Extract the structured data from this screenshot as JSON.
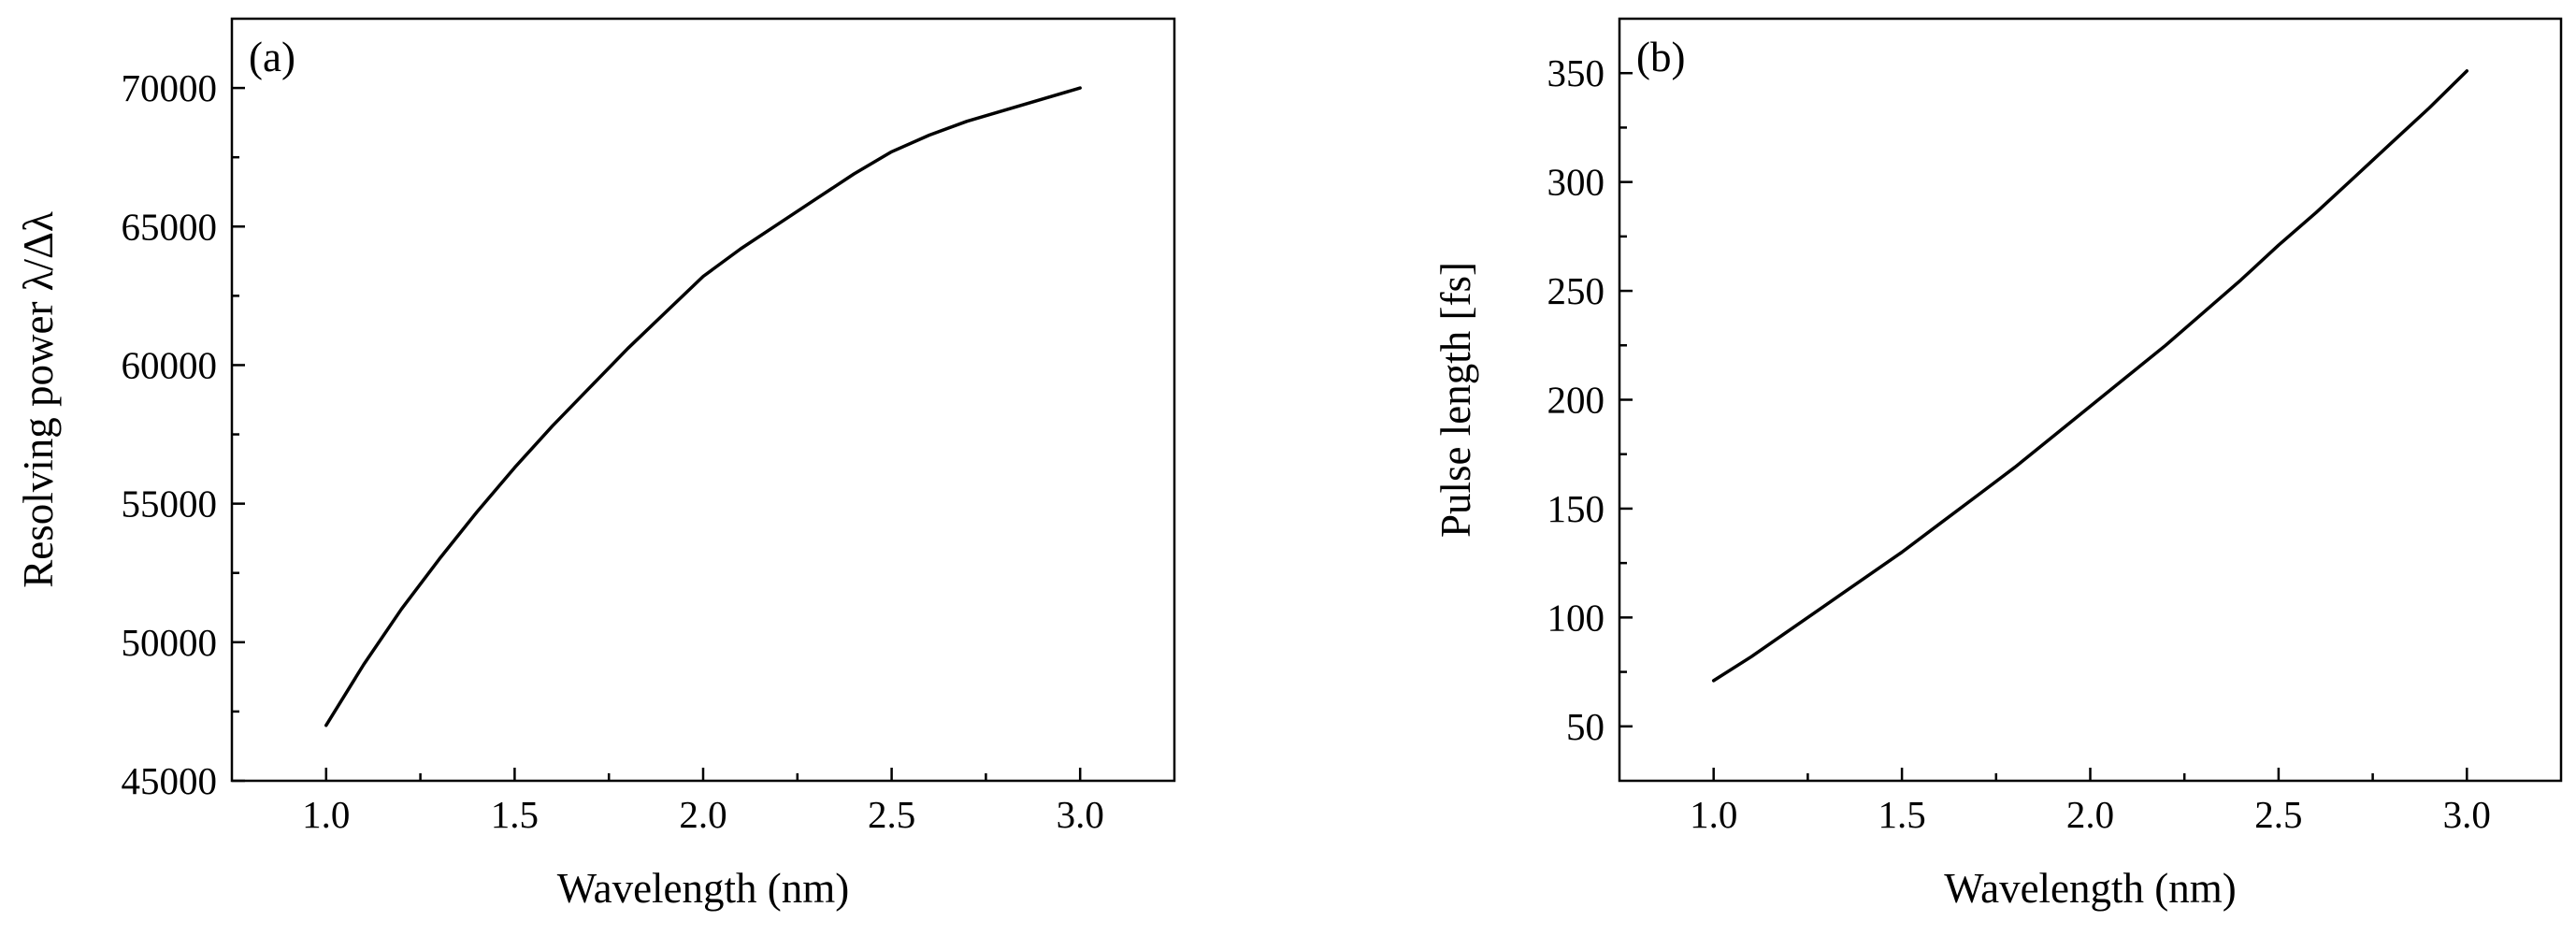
{
  "chart_data": [
    {
      "type": "line",
      "panel_label": "(a)",
      "title": "",
      "xlabel": "Wavelength (nm)",
      "ylabel": "Resolving power λ/Δλ",
      "xlim": [
        0.75,
        3.25
      ],
      "ylim": [
        45000,
        72500
      ],
      "xticks": [
        1.0,
        1.5,
        2.0,
        2.5,
        3.0
      ],
      "xtick_labels": [
        "1.0",
        "1.5",
        "2.0",
        "2.5",
        "3.0"
      ],
      "yticks": [
        45000,
        50000,
        55000,
        60000,
        65000,
        70000
      ],
      "ytick_labels": [
        "45000",
        "50000",
        "55000",
        "60000",
        "65000",
        "70000"
      ],
      "grid": false,
      "series": [
        {
          "color": "#000000",
          "x": [
            1.0,
            1.1,
            1.2,
            1.3,
            1.4,
            1.5,
            1.6,
            1.7,
            1.8,
            1.9,
            2.0,
            2.1,
            2.2,
            2.3,
            2.4,
            2.5,
            2.6,
            2.7,
            2.8,
            2.9,
            3.0
          ],
          "y": [
            47000,
            49200,
            51200,
            53000,
            54700,
            56300,
            57800,
            59200,
            60600,
            61900,
            63200,
            64200,
            65100,
            66000,
            66900,
            67700,
            68300,
            68800,
            69200,
            69600,
            70000
          ]
        }
      ]
    },
    {
      "type": "line",
      "panel_label": "(b)",
      "title": "",
      "xlabel": "Wavelength (nm)",
      "ylabel": "Pulse length [fs]",
      "xlim": [
        0.75,
        3.25
      ],
      "ylim": [
        25,
        375
      ],
      "xticks": [
        1.0,
        1.5,
        2.0,
        2.5,
        3.0
      ],
      "xtick_labels": [
        "1.0",
        "1.5",
        "2.0",
        "2.5",
        "3.0"
      ],
      "yticks": [
        50,
        100,
        150,
        200,
        250,
        300,
        350
      ],
      "ytick_labels": [
        "50",
        "100",
        "150",
        "200",
        "250",
        "300",
        "350"
      ],
      "grid": false,
      "series": [
        {
          "color": "#000000",
          "x": [
            1.0,
            1.1,
            1.2,
            1.3,
            1.4,
            1.5,
            1.6,
            1.7,
            1.8,
            1.9,
            2.0,
            2.1,
            2.2,
            2.3,
            2.4,
            2.5,
            2.6,
            2.7,
            2.8,
            2.9,
            3.0
          ],
          "y": [
            71,
            82,
            94,
            106,
            118,
            130,
            143,
            156,
            169,
            183,
            197,
            211,
            225,
            240,
            255,
            271,
            286,
            302,
            318,
            334,
            351
          ]
        }
      ]
    }
  ]
}
